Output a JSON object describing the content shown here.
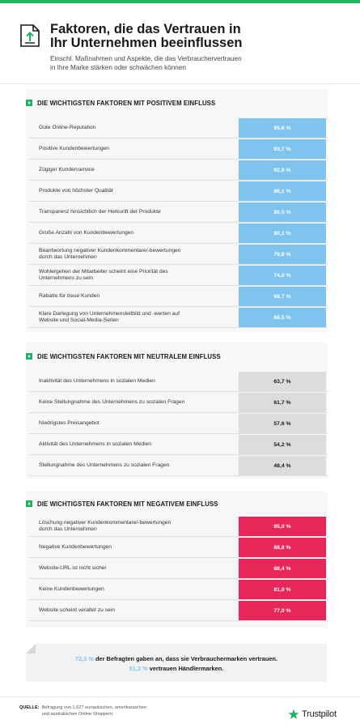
{
  "header": {
    "title_line1": "Faktoren, die das Vertrauen in",
    "title_line2": "Ihr Unternehmen beeinflussen",
    "subtitle_line1": "Einschl. Maßnahmen und Aspekte, die das Verbrauchervertrauen",
    "subtitle_line2": "in Ihre Marke stärken oder schwächen können",
    "icon": "document-arrow-icon"
  },
  "colors": {
    "accent_green": "#1fb35f",
    "positive": "#7ec4ee",
    "neutral": "#dcdcdc",
    "negative": "#e8265a"
  },
  "chart_data": [
    {
      "type": "bar",
      "title": "DIE WICHTIGSTEN FAKTOREN MIT POSITIVEM EINFLUSS",
      "categories": [
        [
          "Gute Online-Reputation"
        ],
        [
          "Positive Kundenbewertungen"
        ],
        [
          "Zügiger Kundenservice"
        ],
        [
          "Produkte von höchster Qualität"
        ],
        [
          "Transparenz hinsichtlich der Herkunft der Produkte"
        ],
        [
          "Große Anzahl von Kundenbewertungen"
        ],
        [
          "Beantwortung negativer Kundenkommentare/-bewertungen",
          "durch das Unternehmen"
        ],
        [
          "Wohlergehen der Mitarbeiter scheint eine Priorität des",
          "Unternehmens zu sein"
        ],
        [
          "Rabatte für treue Kunden"
        ],
        [
          "Klare Darlegung von Unternehmensleitbild und -werten auf",
          "Website und Social-Media-Seiten"
        ]
      ],
      "values": [
        95.6,
        93.7,
        92.9,
        86.1,
        80.5,
        80.1,
        79.9,
        74.0,
        68.7,
        68.5
      ],
      "value_labels": [
        "95,6 %",
        "93,7 %",
        "92,9 %",
        "86,1 %",
        "80,5 %",
        "80,1 %",
        "79,9 %",
        "74,0 %",
        "68,7 %",
        "68,5 %"
      ]
    },
    {
      "type": "bar",
      "title": "DIE WICHTIGSTEN FAKTOREN MIT NEUTRALEM EINFLUSS",
      "categories": [
        [
          "Inaktivität des Unternehmens in sozialen Medien"
        ],
        [
          "Keine Stellungnahme des Unternehmens zu sozialen Fragen"
        ],
        [
          "Niedrigstes Preisangebot"
        ],
        [
          "Aktivität des Unternehmens in sozialen Medien"
        ],
        [
          "Stellungnahme des Unternehmens zu sozialen Fragen"
        ]
      ],
      "values": [
        63.7,
        61.7,
        57.6,
        54.2,
        48.4
      ],
      "value_labels": [
        "63,7 %",
        "61,7 %",
        "57,6 %",
        "54,2 %",
        "48,4 %"
      ]
    },
    {
      "type": "bar",
      "title": "DIE WICHTIGSTEN FAKTOREN MIT NEGATIVEM EINFLUSS",
      "categories": [
        [
          "Löschung negativer Kundenkommentare/-bewertungen",
          "durch das Unternehmen"
        ],
        [
          "Negative Kundenbewertungen"
        ],
        [
          "Website-URL ist nicht sicher"
        ],
        [
          "Keine Kundenbewertungen"
        ],
        [
          "Website scheint veraltet zu sein"
        ]
      ],
      "values": [
        95.0,
        88.8,
        88.4,
        81.0,
        77.0
      ],
      "value_labels": [
        "95,0 %",
        "88,8 %",
        "88,4 %",
        "81,0 %",
        "77,0 %"
      ]
    }
  ],
  "callout": {
    "line1_value": "72,3 %",
    "line1_text": " der Befragten gaben an, dass sie Verbrauchermarken vertrauen.",
    "line2_value": "51,3 %",
    "line2_text": " vertrauen Händlermarken."
  },
  "footer": {
    "source_label": "QUELLE:",
    "source_line1": "Befragung von 1.627 europäischen, amerikanischen",
    "source_line2": "und australischen Online-Shoppern",
    "brand": "Trustpilot",
    "brand_icon": "star-icon"
  }
}
